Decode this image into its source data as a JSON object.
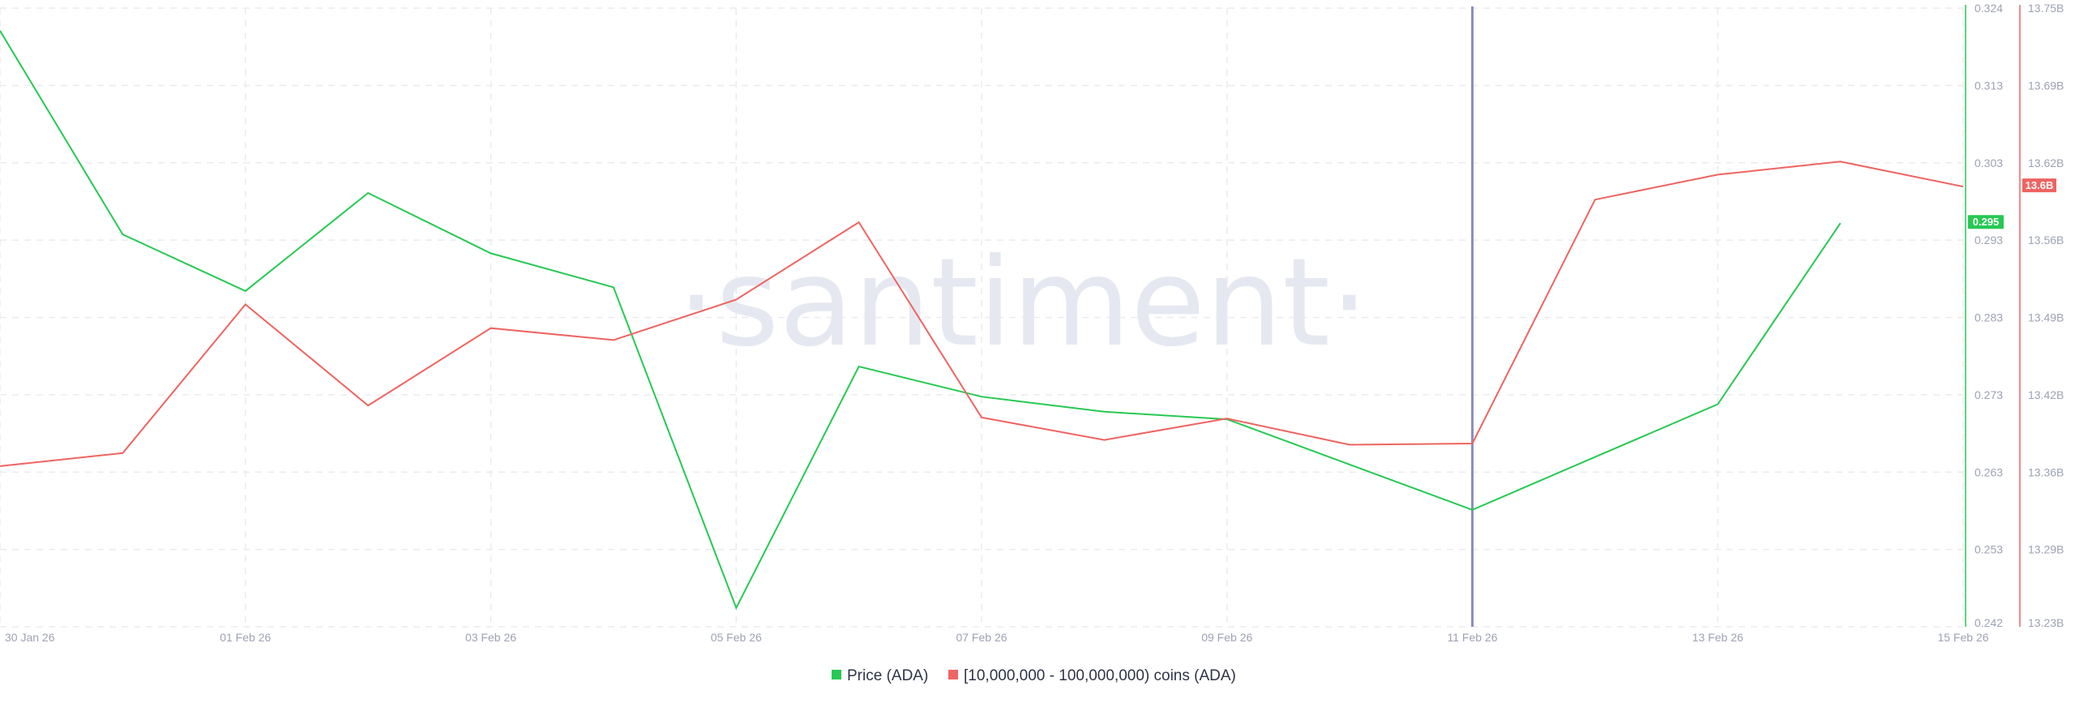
{
  "watermark": "·santiment·",
  "colors": {
    "price": "#26c953",
    "holders": "#ee6461",
    "cursor": "#8a90c0",
    "grid": "#ebebf0",
    "tick": "#9ea2b3"
  },
  "chart_data": {
    "type": "line",
    "grid": true,
    "legend_position": "bottom-center",
    "x_labels": [
      "30 Jan 26",
      "01 Feb 26",
      "03 Feb 26",
      "05 Feb 26",
      "07 Feb 26",
      "09 Feb 26",
      "11 Feb 26",
      "13 Feb 26",
      "15 Feb 26"
    ],
    "x": [
      "30 Jan 26",
      "31 Jan 26",
      "01 Feb 26",
      "02 Feb 26",
      "03 Feb 26",
      "04 Feb 26",
      "05 Feb 26",
      "06 Feb 26",
      "07 Feb 26",
      "08 Feb 26",
      "09 Feb 26",
      "10 Feb 26",
      "11 Feb 26",
      "12 Feb 26",
      "13 Feb 26",
      "14 Feb 26",
      "15 Feb 26"
    ],
    "xlim": [
      "30 Jan 26",
      "15 Feb 26"
    ],
    "cursor_date": "11 Feb 26",
    "y_left": {
      "ticks": [
        "0.324",
        "0.313",
        "0.303",
        "0.293",
        "0.283",
        "0.273",
        "0.263",
        "0.253",
        "0.242"
      ],
      "ylim": [
        0.242,
        0.324
      ]
    },
    "y_right": {
      "ticks": [
        "13.75B",
        "13.69B",
        "13.62B",
        "13.56B",
        "13.49B",
        "13.42B",
        "13.36B",
        "13.29B",
        "13.23B"
      ],
      "ylim": [
        13.23,
        13.75
      ],
      "unit": "B"
    },
    "series": [
      {
        "name": "Price (ADA)",
        "axis": "left",
        "current_label": "0.295",
        "values": [
          0.321,
          0.294,
          0.2865,
          0.2995,
          0.2915,
          0.287,
          0.2445,
          0.2765,
          0.2725,
          0.2705,
          0.2695,
          0.2635,
          0.2575,
          0.2645,
          0.2715,
          0.2955,
          null
        ]
      },
      {
        "name": "[10,000,000 - 100,000,000) coins (ADA)",
        "axis": "right",
        "current_label": "13.6B",
        "values": [
          13.365,
          13.376,
          13.501,
          13.416,
          13.481,
          13.471,
          13.505,
          13.57,
          13.406,
          13.387,
          13.405,
          13.383,
          13.384,
          13.589,
          13.61,
          13.621,
          13.6
        ]
      }
    ]
  }
}
